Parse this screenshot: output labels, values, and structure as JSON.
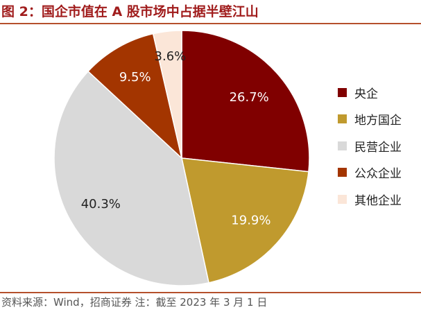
{
  "header": {
    "title": "图 2：国企市值在 A 股市场中占据半壁江山"
  },
  "footer": {
    "source": "资料来源：Wind，招商证券   注：截至 2023 年 3 月 1 日"
  },
  "chart_data": {
    "type": "pie",
    "categories": [
      "央企",
      "地方国企",
      "民营企业",
      "公众企业",
      "其他企业"
    ],
    "values": [
      26.7,
      19.9,
      40.3,
      9.5,
      3.6
    ],
    "labels": [
      "26.7%",
      "19.9%",
      "40.3%",
      "9.5%",
      "3.6%"
    ],
    "colors": [
      "#800000",
      "#c09a2e",
      "#d9d9d9",
      "#a33500",
      "#fbe6d8"
    ],
    "label_colors": [
      "#ffffff",
      "#ffffff",
      "#222222",
      "#ffffff",
      "#222222"
    ],
    "start_angle": "12 o'clock",
    "direction": "clockwise",
    "legend_position": "right"
  }
}
